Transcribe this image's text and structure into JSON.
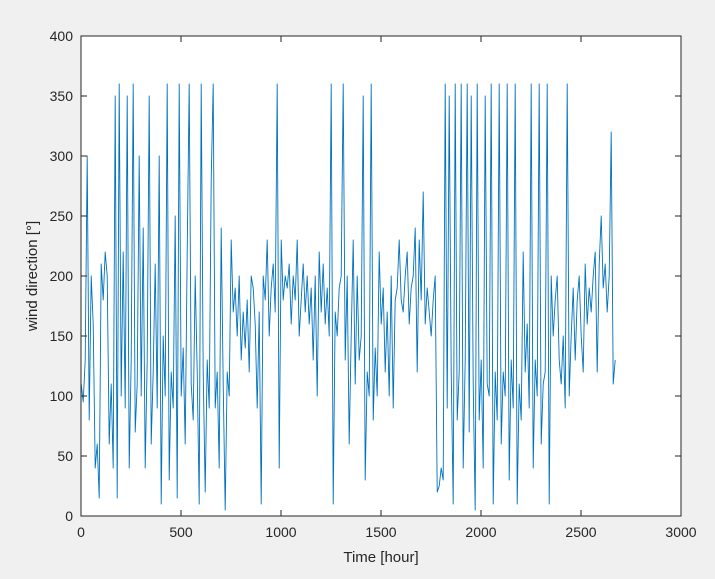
{
  "chart_data": {
    "type": "line",
    "xlabel": "Time [hour]",
    "ylabel": "wind direction [°]",
    "xlim": [
      0,
      3000
    ],
    "ylim": [
      0,
      400
    ],
    "xticks": [
      0,
      500,
      1000,
      1500,
      2000,
      2500,
      3000
    ],
    "yticks": [
      0,
      50,
      100,
      150,
      200,
      250,
      300,
      350,
      400
    ],
    "grid": false,
    "colors": {
      "line": "#0072BD",
      "axes": "#262626",
      "plot_bg": "#ffffff",
      "figure_bg": "#f0f0f0"
    },
    "series": [
      {
        "x_start": 1,
        "x_step": 10,
        "values": [
          110,
          95,
          130,
          300,
          80,
          200,
          160,
          40,
          60,
          15,
          210,
          180,
          220,
          200,
          60,
          110,
          40,
          350,
          15,
          360,
          100,
          220,
          90,
          350,
          40,
          130,
          360,
          70,
          110,
          300,
          100,
          240,
          40,
          130,
          350,
          60,
          120,
          210,
          90,
          300,
          10,
          150,
          100,
          360,
          30,
          120,
          90,
          250,
          15,
          360,
          100,
          140,
          60,
          220,
          360,
          110,
          80,
          200,
          120,
          10,
          360,
          120,
          20,
          130,
          90,
          280,
          360,
          90,
          120,
          40,
          240,
          110,
          5,
          120,
          100,
          230,
          170,
          190,
          150,
          200,
          130,
          170,
          140,
          180,
          120,
          200,
          190,
          160,
          90,
          170,
          10,
          200,
          180,
          230,
          150,
          190,
          210,
          170,
          360,
          40,
          230,
          180,
          200,
          190,
          210,
          160,
          200,
          180,
          230,
          150,
          180,
          210,
          170,
          200,
          160,
          190,
          130,
          200,
          100,
          220,
          170,
          210,
          160,
          190,
          150,
          360,
          10,
          170,
          150,
          190,
          200,
          360,
          130,
          200,
          60,
          150,
          230,
          110,
          200,
          130,
          150,
          350,
          30,
          120,
          100,
          360,
          80,
          140,
          100,
          220,
          160,
          190,
          120,
          170,
          100,
          200,
          90,
          180,
          190,
          230,
          180,
          170,
          200,
          220,
          160,
          190,
          200,
          240,
          120,
          230,
          180,
          270,
          160,
          190,
          170,
          150,
          180,
          200,
          20,
          25,
          40,
          30,
          360,
          90,
          350,
          120,
          10,
          360,
          80,
          120,
          360,
          40,
          130,
          360,
          70,
          350,
          110,
          5,
          360,
          80,
          130,
          40,
          350,
          110,
          100,
          360,
          10,
          120,
          80,
          360,
          60,
          120,
          100,
          360,
          30,
          130,
          90,
          360,
          10,
          110,
          80,
          220,
          120,
          160,
          90,
          360,
          40,
          130,
          100,
          360,
          60,
          110,
          120,
          360,
          10,
          200,
          150,
          180,
          200,
          130,
          110,
          150,
          90,
          360,
          100,
          150,
          190,
          130,
          180,
          200,
          150,
          120,
          210,
          160,
          190,
          170,
          200,
          220,
          120,
          210,
          250,
          190,
          210,
          170,
          200,
          320,
          110,
          130
        ]
      }
    ]
  }
}
